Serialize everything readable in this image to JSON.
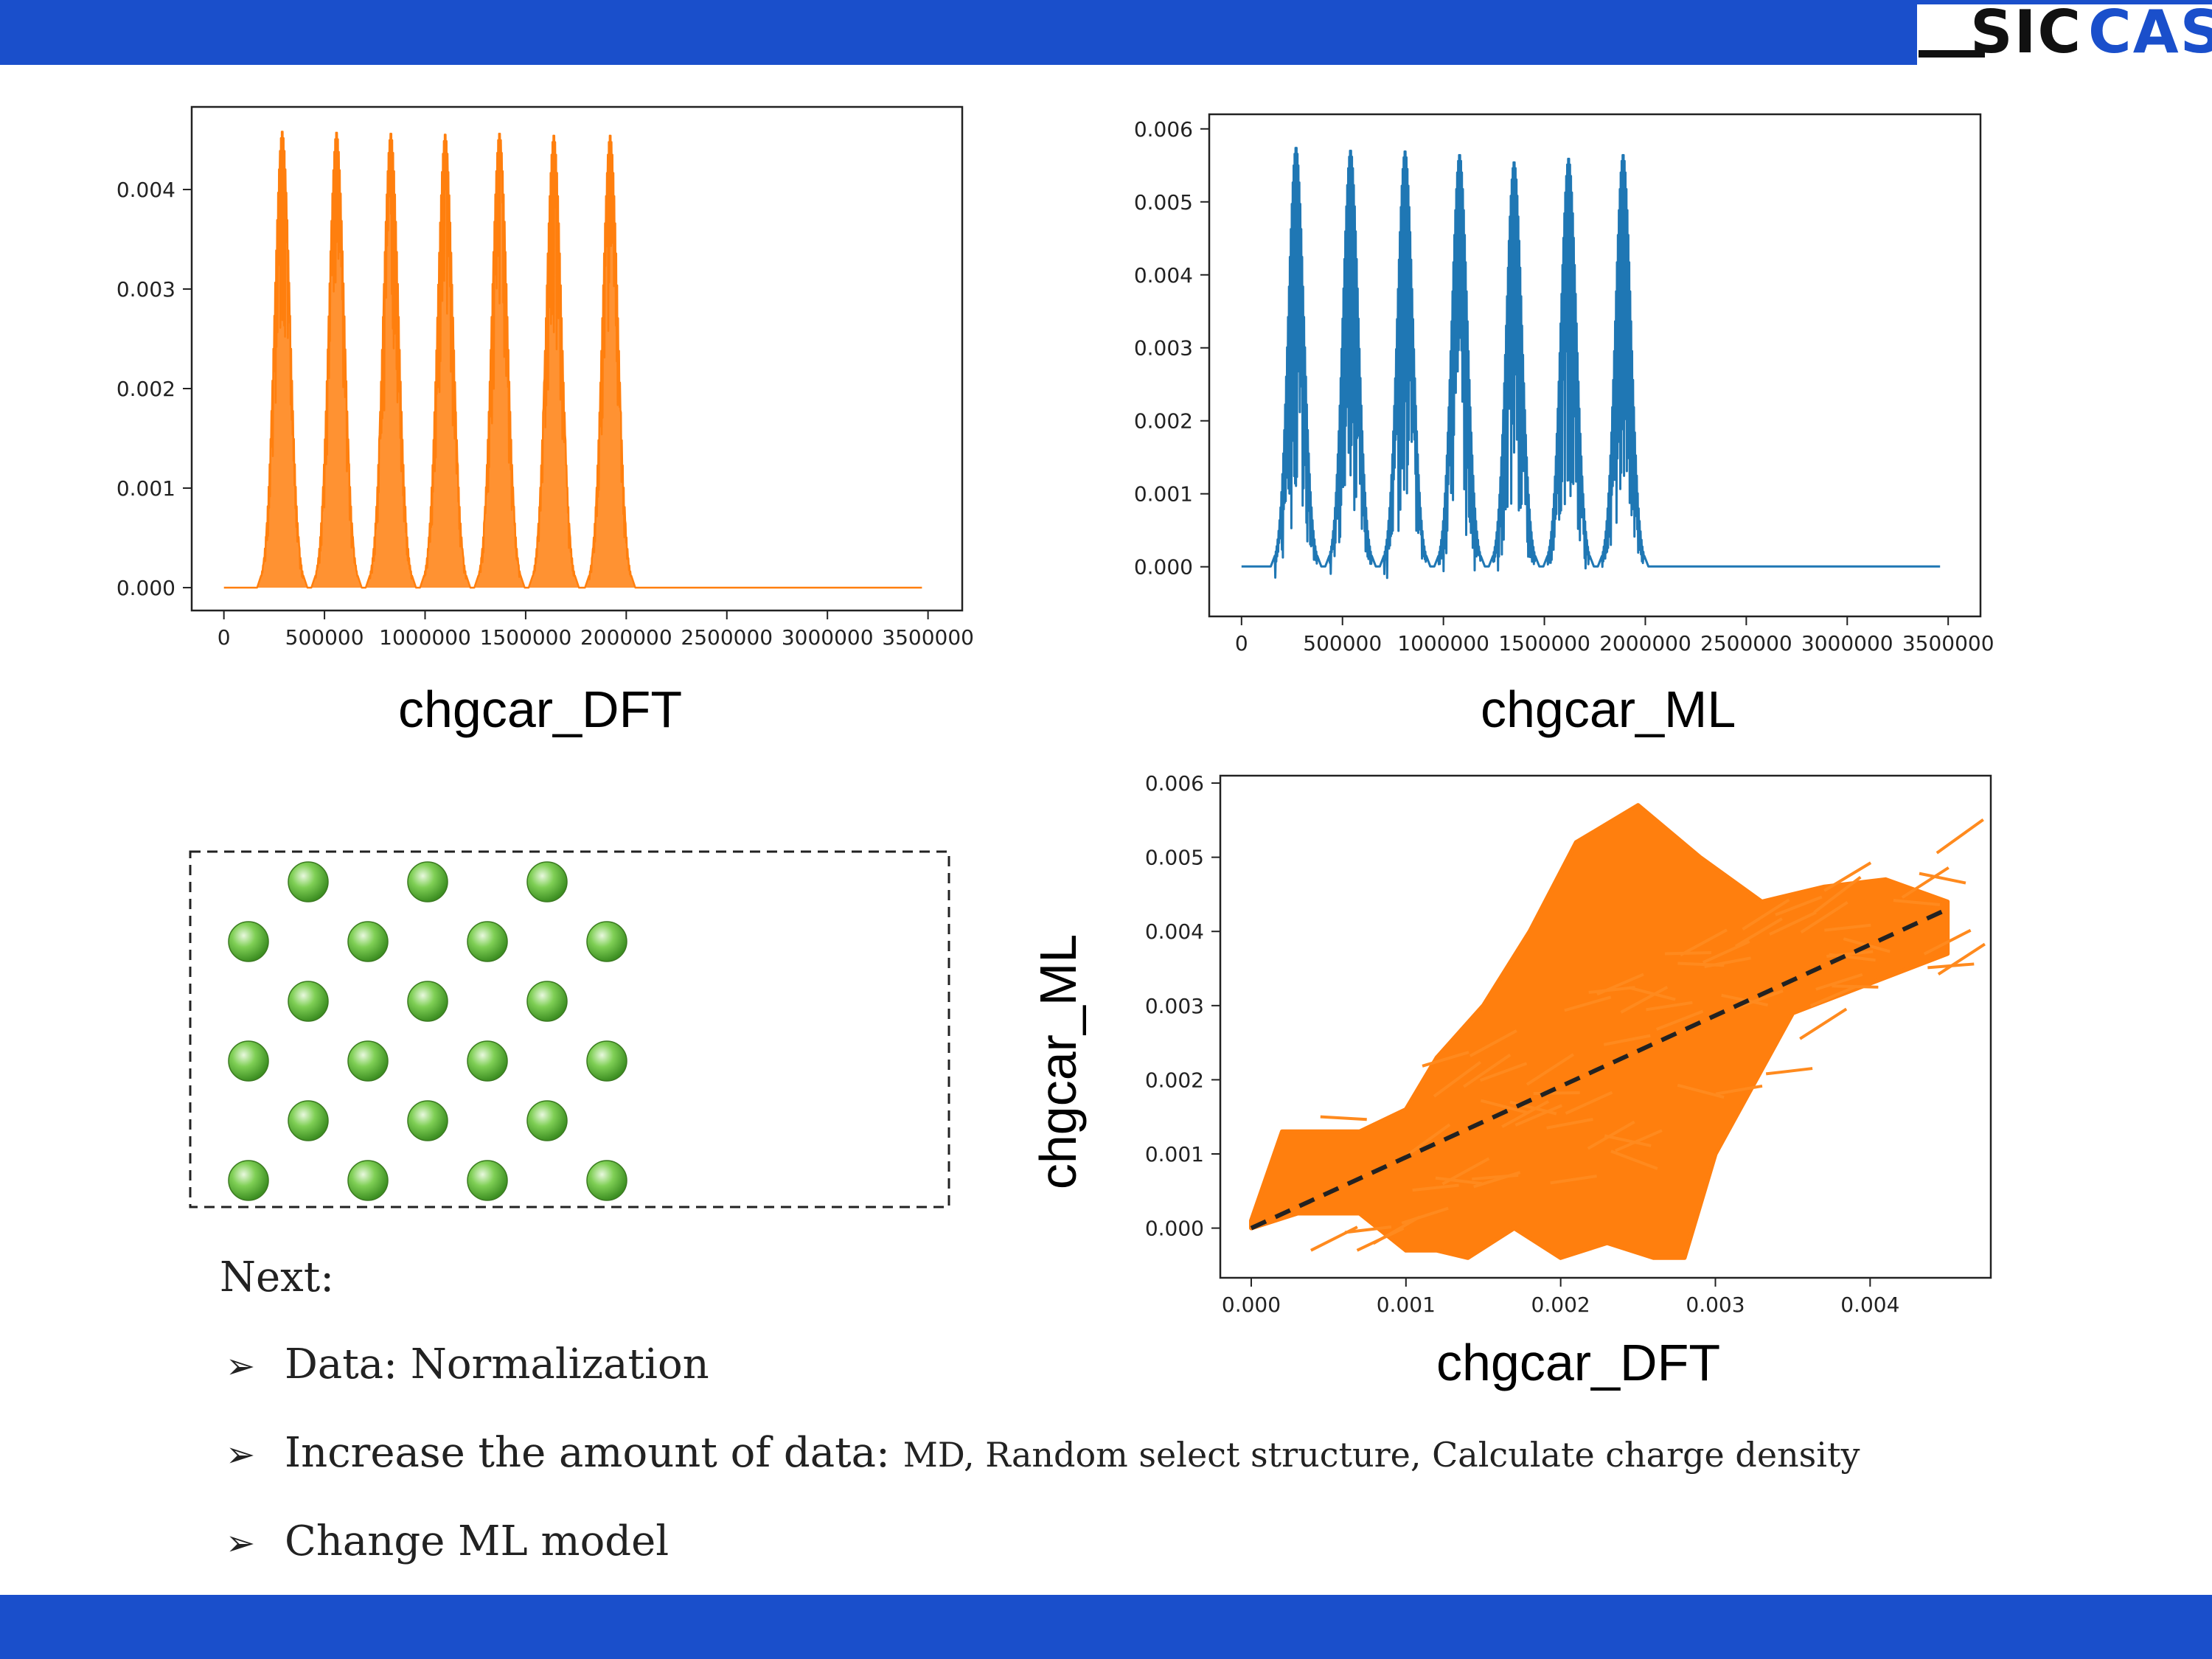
{
  "header": {
    "logo_text_dark": "SIC",
    "logo_text_blue": "CAS"
  },
  "captions": {
    "top_left": "chgcar_DFT",
    "top_right": "chgcar_ML",
    "scatter_xlabel": "chgcar_DFT",
    "scatter_ylabel": "chgcar_ML"
  },
  "notes": {
    "heading": "Next:",
    "bullets": [
      {
        "main": "Data: Normalization",
        "detail": ""
      },
      {
        "main": "Increase the amount of data: ",
        "detail": "MD, Random select structure, Calculate charge density"
      },
      {
        "main": "Change ML model",
        "detail": ""
      }
    ]
  },
  "colors": {
    "header_bar": "#1a4fcb",
    "dft_series": "#ff7f0e",
    "ml_series": "#1f77b4",
    "atom": "#6fc44a"
  },
  "chart_data": [
    {
      "id": "dft-line",
      "type": "line",
      "x_ticks": [
        0,
        500000,
        1000000,
        1500000,
        2000000,
        2500000,
        3000000,
        3500000
      ],
      "x_tick_labels": [
        "0",
        "500000",
        "1000000",
        "1500000",
        "2000000",
        "2500000",
        "3000000",
        "3500000"
      ],
      "y_ticks": [
        0.0,
        0.001,
        0.002,
        0.003,
        0.004
      ],
      "y_tick_labels": [
        "0.000",
        "0.001",
        "0.002",
        "0.003",
        "0.004"
      ],
      "xlim": [
        -160000,
        3670000
      ],
      "ylim": [
        -0.00023,
        0.00483
      ],
      "series": [
        {
          "color": "#ff7f0e",
          "peak_centers": [
            290000,
            560000,
            830000,
            1100000,
            1370000,
            1640000,
            1920000
          ],
          "peak_values": [
            0.00459,
            0.00458,
            0.00457,
            0.00456,
            0.00457,
            0.00455,
            0.00455
          ],
          "x_end": 3470000
        }
      ],
      "caption": "chgcar_DFT"
    },
    {
      "id": "ml-line",
      "type": "line",
      "x_ticks": [
        0,
        500000,
        1000000,
        1500000,
        2000000,
        2500000,
        3000000,
        3500000
      ],
      "x_tick_labels": [
        "0",
        "500000",
        "1000000",
        "1500000",
        "2000000",
        "2500000",
        "3000000",
        "3500000"
      ],
      "y_ticks": [
        0.0,
        0.001,
        0.002,
        0.003,
        0.004,
        0.005,
        0.006
      ],
      "y_tick_labels": [
        "0.000",
        "0.001",
        "0.002",
        "0.003",
        "0.004",
        "0.005",
        "0.006"
      ],
      "xlim": [
        -160000,
        3660000
      ],
      "ylim": [
        -0.00068,
        0.0062
      ],
      "series": [
        {
          "color": "#1f77b4",
          "peak_centers": [
            270000,
            540000,
            810000,
            1080000,
            1350000,
            1620000,
            1890000
          ],
          "peak_values": [
            0.00575,
            0.00571,
            0.0057,
            0.00565,
            0.00555,
            0.0056,
            0.00565
          ],
          "min_value": -0.0003,
          "x_end": 3460000
        }
      ],
      "caption": "chgcar_ML"
    },
    {
      "id": "parity-scatter",
      "type": "scatter",
      "x_ticks": [
        0.0,
        0.001,
        0.002,
        0.003,
        0.004
      ],
      "x_tick_labels": [
        "0.000",
        "0.001",
        "0.002",
        "0.003",
        "0.004"
      ],
      "y_ticks": [
        0.0,
        0.001,
        0.002,
        0.003,
        0.004,
        0.005,
        0.006
      ],
      "y_tick_labels": [
        "0.000",
        "0.001",
        "0.002",
        "0.003",
        "0.004",
        "0.005",
        "0.006"
      ],
      "xlim": [
        -0.0002,
        0.00478
      ],
      "ylim": [
        -0.00067,
        0.0061
      ],
      "xlabel": "chgcar_DFT",
      "ylabel": "chgcar_ML",
      "series": [
        {
          "color": "#ff7f0e",
          "region_upper": [
            [
              0.0,
              0.0001
            ],
            [
              0.0002,
              0.0013
            ],
            [
              0.0007,
              0.0013
            ],
            [
              0.001,
              0.0016
            ],
            [
              0.0012,
              0.0023
            ],
            [
              0.0015,
              0.003
            ],
            [
              0.0018,
              0.004
            ],
            [
              0.0021,
              0.0052
            ],
            [
              0.0025,
              0.0057
            ],
            [
              0.0029,
              0.005
            ],
            [
              0.0033,
              0.0044
            ],
            [
              0.0037,
              0.0046
            ],
            [
              0.0041,
              0.0047
            ],
            [
              0.0045,
              0.0044
            ]
          ],
          "region_lower": [
            [
              0.0045,
              0.0037
            ],
            [
              0.004,
              0.0033
            ],
            [
              0.0035,
              0.0029
            ],
            [
              0.003,
              0.001
            ],
            [
              0.0028,
              -0.0004
            ],
            [
              0.0026,
              -0.0004
            ],
            [
              0.0023,
              -0.0002
            ],
            [
              0.002,
              -0.0004
            ],
            [
              0.0017,
              0.0
            ],
            [
              0.0014,
              -0.0004
            ],
            [
              0.0012,
              -0.0003
            ],
            [
              0.001,
              -0.0003
            ],
            [
              0.0007,
              0.0002
            ],
            [
              0.0003,
              0.0002
            ],
            [
              0.0,
              0.0
            ]
          ]
        }
      ],
      "reference_line": {
        "x": [
          0.0,
          0.0045
        ],
        "y": [
          0.0,
          0.0043
        ],
        "style": "dashed",
        "color": "#222222"
      }
    }
  ]
}
